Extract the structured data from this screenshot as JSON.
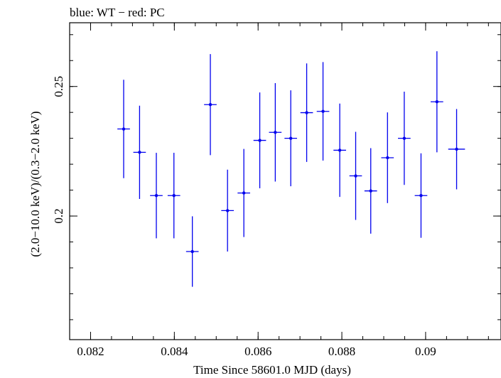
{
  "chart_data": {
    "type": "scatter",
    "title": "blue: WT − red: PC",
    "xlabel": "Time Since 58601.0 MJD (days)",
    "ylabel": "(2.0−10.0 keV)/(0.3−2.0 keV)",
    "xlim": [
      0.0815,
      0.0918
    ],
    "ylim": [
      0.1523,
      0.2746
    ],
    "x_ticks": [
      {
        "value": 0.082,
        "label": "0.082"
      },
      {
        "value": 0.084,
        "label": "0.084"
      },
      {
        "value": 0.086,
        "label": "0.086"
      },
      {
        "value": 0.088,
        "label": "0.088"
      },
      {
        "value": 0.09,
        "label": "0.09"
      }
    ],
    "y_ticks": [
      {
        "value": 0.2,
        "label": "0.2"
      },
      {
        "value": 0.25,
        "label": "0.25"
      }
    ],
    "grid": false,
    "colors": {
      "series": "#0000ee",
      "axes": "#000000"
    },
    "series": [
      {
        "name": "WT",
        "points": [
          {
            "x": 0.08279,
            "y": 0.2336,
            "xerr": 0.00015,
            "yerr": 0.019
          },
          {
            "x": 0.08317,
            "y": 0.2246,
            "xerr": 0.00015,
            "yerr": 0.018
          },
          {
            "x": 0.08357,
            "y": 0.2079,
            "xerr": 0.00015,
            "yerr": 0.0165
          },
          {
            "x": 0.08399,
            "y": 0.2079,
            "xerr": 0.00015,
            "yerr": 0.0165
          },
          {
            "x": 0.08443,
            "y": 0.1863,
            "xerr": 0.00015,
            "yerr": 0.0136
          },
          {
            "x": 0.08486,
            "y": 0.243,
            "xerr": 0.00015,
            "yerr": 0.0195
          },
          {
            "x": 0.08527,
            "y": 0.2021,
            "xerr": 0.00015,
            "yerr": 0.0158
          },
          {
            "x": 0.08566,
            "y": 0.2089,
            "xerr": 0.00015,
            "yerr": 0.017
          },
          {
            "x": 0.08604,
            "y": 0.2292,
            "xerr": 0.00015,
            "yerr": 0.0185
          },
          {
            "x": 0.08641,
            "y": 0.2323,
            "xerr": 0.00015,
            "yerr": 0.019
          },
          {
            "x": 0.08678,
            "y": 0.23,
            "xerr": 0.00015,
            "yerr": 0.0185
          },
          {
            "x": 0.08716,
            "y": 0.2399,
            "xerr": 0.00015,
            "yerr": 0.019
          },
          {
            "x": 0.08755,
            "y": 0.2404,
            "xerr": 0.00015,
            "yerr": 0.019
          },
          {
            "x": 0.08795,
            "y": 0.2254,
            "xerr": 0.00015,
            "yerr": 0.018
          },
          {
            "x": 0.08833,
            "y": 0.2155,
            "xerr": 0.00015,
            "yerr": 0.017
          },
          {
            "x": 0.08869,
            "y": 0.2097,
            "xerr": 0.00015,
            "yerr": 0.0165
          },
          {
            "x": 0.08909,
            "y": 0.2225,
            "xerr": 0.00015,
            "yerr": 0.0175
          },
          {
            "x": 0.08949,
            "y": 0.23,
            "xerr": 0.00015,
            "yerr": 0.018
          },
          {
            "x": 0.08989,
            "y": 0.2079,
            "xerr": 0.00015,
            "yerr": 0.0163
          },
          {
            "x": 0.09027,
            "y": 0.2441,
            "xerr": 0.00015,
            "yerr": 0.0195
          },
          {
            "x": 0.09074,
            "y": 0.2258,
            "xerr": 0.0002,
            "yerr": 0.0155
          }
        ]
      }
    ]
  }
}
